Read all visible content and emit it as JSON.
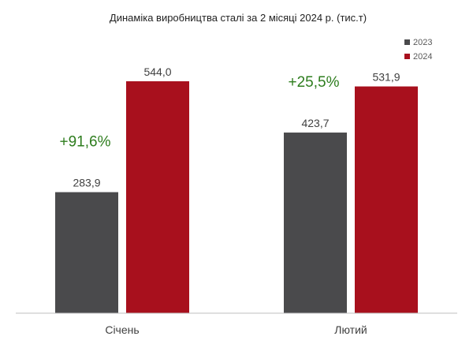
{
  "chart_data": {
    "type": "bar",
    "title": "Динаміка виробництва сталі за 2 місяці 2024 р. (тис.т)",
    "categories": [
      "Січень",
      "Лютий"
    ],
    "series": [
      {
        "name": "2023",
        "color": "#4a4a4c",
        "values": [
          283.9,
          423.7
        ],
        "labels": [
          "283,9",
          "423,7"
        ]
      },
      {
        "name": "2024",
        "color": "#a8101d",
        "values": [
          544.0,
          531.9
        ],
        "labels": [
          "544,0",
          "531,9"
        ]
      }
    ],
    "annotations": [
      {
        "category": "Січень",
        "text": "+91,6%",
        "color": "#2e7d1e"
      },
      {
        "category": "Лютий",
        "text": "+25,5%",
        "color": "#2e7d1e"
      }
    ],
    "ylim": [
      0,
      600
    ],
    "grid": false,
    "legend_position": "top-right",
    "axis_color": "#bfbfbf",
    "text_color": "#404040"
  }
}
